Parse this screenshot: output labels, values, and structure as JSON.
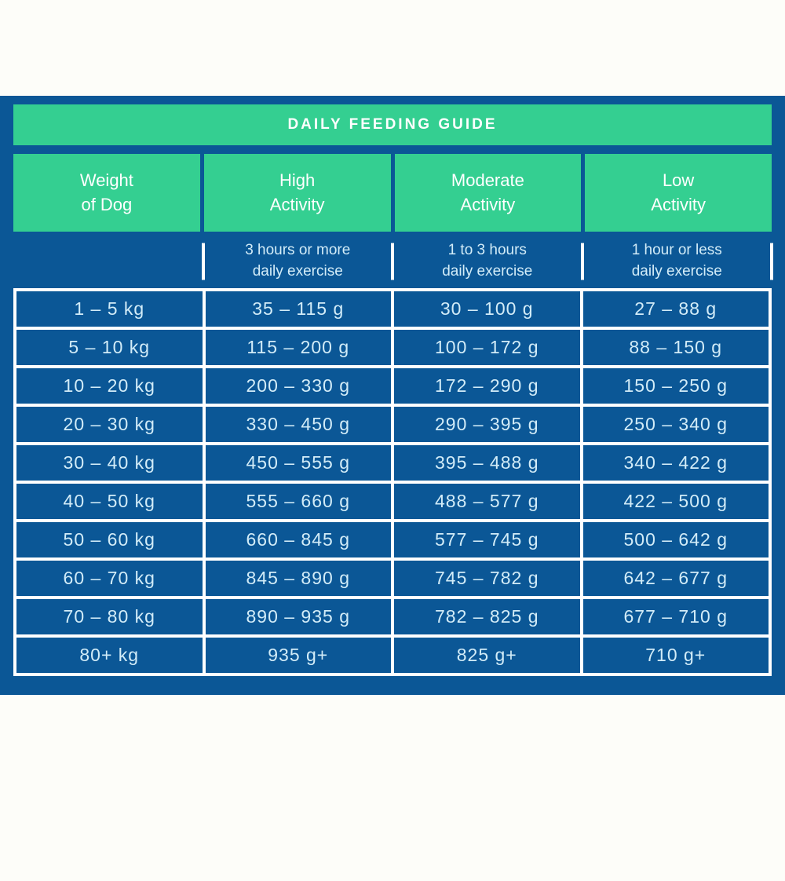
{
  "title_banner": {
    "text": "DAILY FEEDING GUIDE"
  },
  "header": {
    "columns": [
      {
        "line1": "Weight",
        "line2": "of Dog"
      },
      {
        "line1": "High",
        "line2": "Activity"
      },
      {
        "line1": "Moderate",
        "line2": "Activity"
      },
      {
        "line1": "Low",
        "line2": "Activity"
      }
    ]
  },
  "subheader": {
    "columns": [
      {
        "line1": "",
        "line2": ""
      },
      {
        "line1": "3 hours or more",
        "line2": "daily exercise"
      },
      {
        "line1": "1 to 3 hours",
        "line2": "daily exercise"
      },
      {
        "line1": "1 hour or less",
        "line2": "daily exercise"
      }
    ]
  },
  "colors": {
    "panel_blue": "#0b5796",
    "accent_green": "#34cf91",
    "header_text": "#ffffff",
    "cell_text": "#d2ecf8",
    "grid_lines": "#ffffff",
    "page_background": "#fdfdf9"
  },
  "chart_data": {
    "type": "table",
    "title": "DAILY FEEDING GUIDE",
    "columns": [
      "Weight of Dog",
      "High Activity (3 hours or more daily exercise)",
      "Moderate Activity (1 to 3 hours daily exercise)",
      "Low Activity (1 hour or less daily exercise)"
    ],
    "rows": [
      [
        "1 – 5 kg",
        "35 – 115 g",
        "30 – 100 g",
        "27 – 88 g"
      ],
      [
        "5 – 10 kg",
        "115 – 200 g",
        "100 – 172 g",
        "88 – 150 g"
      ],
      [
        "10 – 20 kg",
        "200 – 330 g",
        "172 – 290 g",
        "150 – 250 g"
      ],
      [
        "20 – 30 kg",
        "330 – 450 g",
        "290 – 395 g",
        "250 – 340 g"
      ],
      [
        "30 – 40 kg",
        "450 – 555 g",
        "395 – 488 g",
        "340 – 422 g"
      ],
      [
        "40 – 50 kg",
        "555 – 660 g",
        "488 – 577 g",
        "422 – 500 g"
      ],
      [
        "50 – 60 kg",
        "660 – 845 g",
        "577 – 745 g",
        "500 – 642 g"
      ],
      [
        "60 – 70 kg",
        "845 – 890 g",
        "745 – 782 g",
        "642 – 677 g"
      ],
      [
        "70 – 80 kg",
        "890 – 935 g",
        "782 – 825 g",
        "677 – 710 g"
      ],
      [
        "80+ kg",
        "935 g+",
        "825 g+",
        "710 g+"
      ]
    ]
  }
}
